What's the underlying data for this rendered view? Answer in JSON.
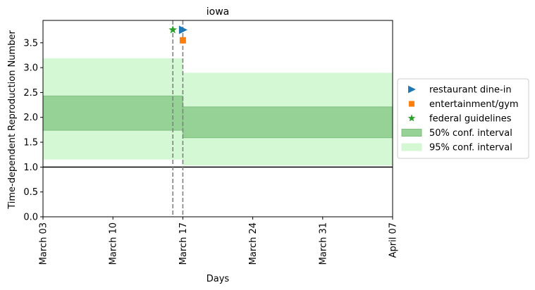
{
  "chart_data": {
    "type": "area",
    "title": "iowa",
    "xlabel": "Days",
    "ylabel": "Time-dependent Reproduction Number",
    "x_ticks": [
      "March 03",
      "March 10",
      "March 17",
      "March 24",
      "March 31",
      "April 07"
    ],
    "x_range_days": [
      0,
      35
    ],
    "ylim": [
      0,
      3.95
    ],
    "y_ticks": [
      "0.0",
      "0.5",
      "1.0",
      "1.5",
      "2.0",
      "2.5",
      "3.0",
      "3.5"
    ],
    "reference_line_y": 1.0,
    "intervals": [
      {
        "x_start": 0,
        "x_end": 14,
        "ci50": [
          1.74,
          2.43
        ],
        "ci95": [
          1.16,
          3.18
        ]
      },
      {
        "x_start": 14,
        "x_end": 35,
        "ci50": [
          1.59,
          2.21
        ],
        "ci95": [
          1.04,
          2.89
        ]
      }
    ],
    "vertical_lines_x": [
      13,
      14
    ],
    "markers": [
      {
        "label": "restaurant dine-in",
        "x": 14,
        "y": 3.76,
        "shape": "triangle-right",
        "color": "#1f77b4"
      },
      {
        "label": "entertainment/gym",
        "x": 14,
        "y": 3.55,
        "shape": "square",
        "color": "#ff7f0e"
      },
      {
        "label": "federal guidelines",
        "x": 13,
        "y": 3.76,
        "shape": "star",
        "color": "#2ca02c"
      }
    ],
    "legend": {
      "placement": "right",
      "entries": [
        {
          "label": "restaurant dine-in",
          "kind": "triangle-right",
          "color": "#1f77b4"
        },
        {
          "label": "entertainment/gym",
          "kind": "square",
          "color": "#ff7f0e"
        },
        {
          "label": "federal guidelines",
          "kind": "star",
          "color": "#2ca02c"
        },
        {
          "label": "50% conf. interval",
          "kind": "patch",
          "color": "#96d296"
        },
        {
          "label": "95% conf. interval",
          "kind": "patch",
          "color": "#d3f8d3"
        }
      ]
    },
    "colors": {
      "ci50": "#96d296",
      "ci50_edge": "#80c080",
      "ci95": "#d3f8d3",
      "vline": "#808080"
    }
  }
}
